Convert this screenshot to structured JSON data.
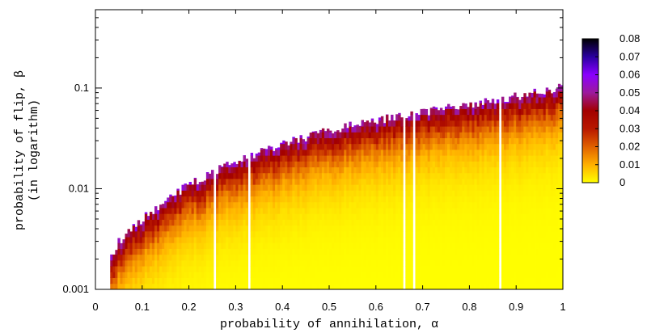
{
  "chart_data": {
    "type": "heatmap",
    "xlabel": "probability   of   annihilation, α",
    "ylabel": "probability of flip, β",
    "ylabel_sub": "(in logarithm)",
    "xlim": [
      0,
      1
    ],
    "ylim": [
      0.001,
      0.6
    ],
    "y_scale": "log",
    "x_ticks": [
      "0",
      "0.1",
      "0.2",
      "0.3",
      "0.4",
      "0.5",
      "0.6",
      "0.7",
      "0.8",
      "0.9",
      "1"
    ],
    "y_ticks": [
      "0.001",
      "0.01",
      "0.1"
    ],
    "colorbar": {
      "min": 0,
      "max": 0.08,
      "ticks": [
        "0",
        "0.01",
        "0.02",
        "0.03",
        "0.04",
        "0.05",
        "0.06",
        "0.07",
        "0.08"
      ],
      "colors": [
        "#ffff00",
        "#ffb000",
        "#e06000",
        "#b81800",
        "#a30000",
        "#9c1a9c",
        "#8a00ff",
        "#2a00a0",
        "#000000"
      ]
    },
    "boundary": {
      "description": "colored region lies below the boundary curve; above it is white (no data)",
      "alpha": [
        0.03,
        0.05,
        0.1,
        0.15,
        0.2,
        0.3,
        0.4,
        0.5,
        0.6,
        0.7,
        0.8,
        0.9,
        1.0
      ],
      "beta_max": [
        0.002,
        0.003,
        0.005,
        0.0075,
        0.011,
        0.019,
        0.028,
        0.038,
        0.048,
        0.058,
        0.069,
        0.083,
        0.102
      ]
    },
    "grid": false,
    "legend": "colorbar-right"
  }
}
